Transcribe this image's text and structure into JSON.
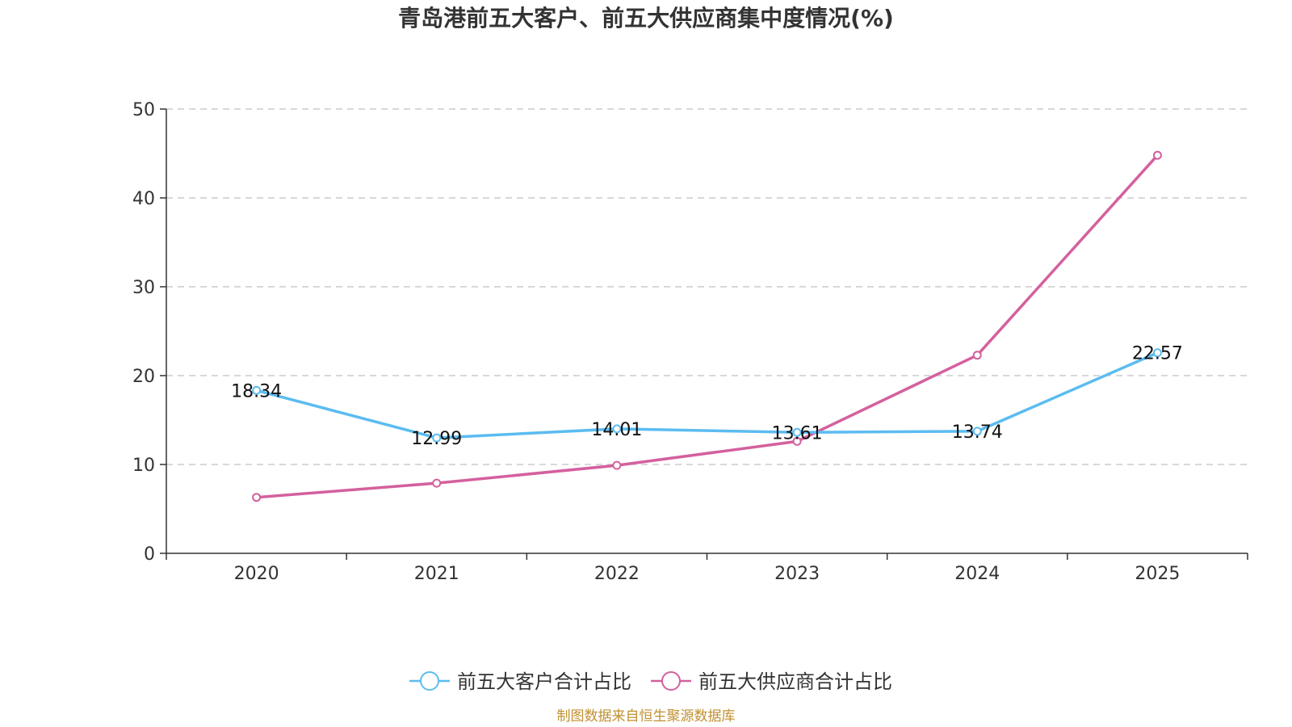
{
  "chart_data": {
    "type": "line",
    "title": "青岛港前五大客户、前五大供应商集中度情况(%)",
    "categories": [
      "2020",
      "2021",
      "2022",
      "2023",
      "2024",
      "2025"
    ],
    "ylim": [
      0,
      50
    ],
    "yticks": [
      0,
      10,
      20,
      30,
      40,
      50
    ],
    "grid": true,
    "legend_position": "bottom",
    "series": [
      {
        "name": "前五大客户合计占比",
        "color": "#5bbcf0",
        "values": [
          18.34,
          12.99,
          14.01,
          13.61,
          13.74,
          22.57
        ],
        "labels": [
          "18.34",
          "12.99",
          "14.01",
          "13.61",
          "13.74",
          "22.57"
        ],
        "show_labels": true
      },
      {
        "name": "前五大供应商合计占比",
        "color": "#d4609e",
        "values": [
          6.3,
          7.9,
          9.9,
          12.6,
          22.3,
          44.8
        ],
        "show_labels": false
      }
    ],
    "source": "制图数据来自恒生聚源数据库"
  }
}
